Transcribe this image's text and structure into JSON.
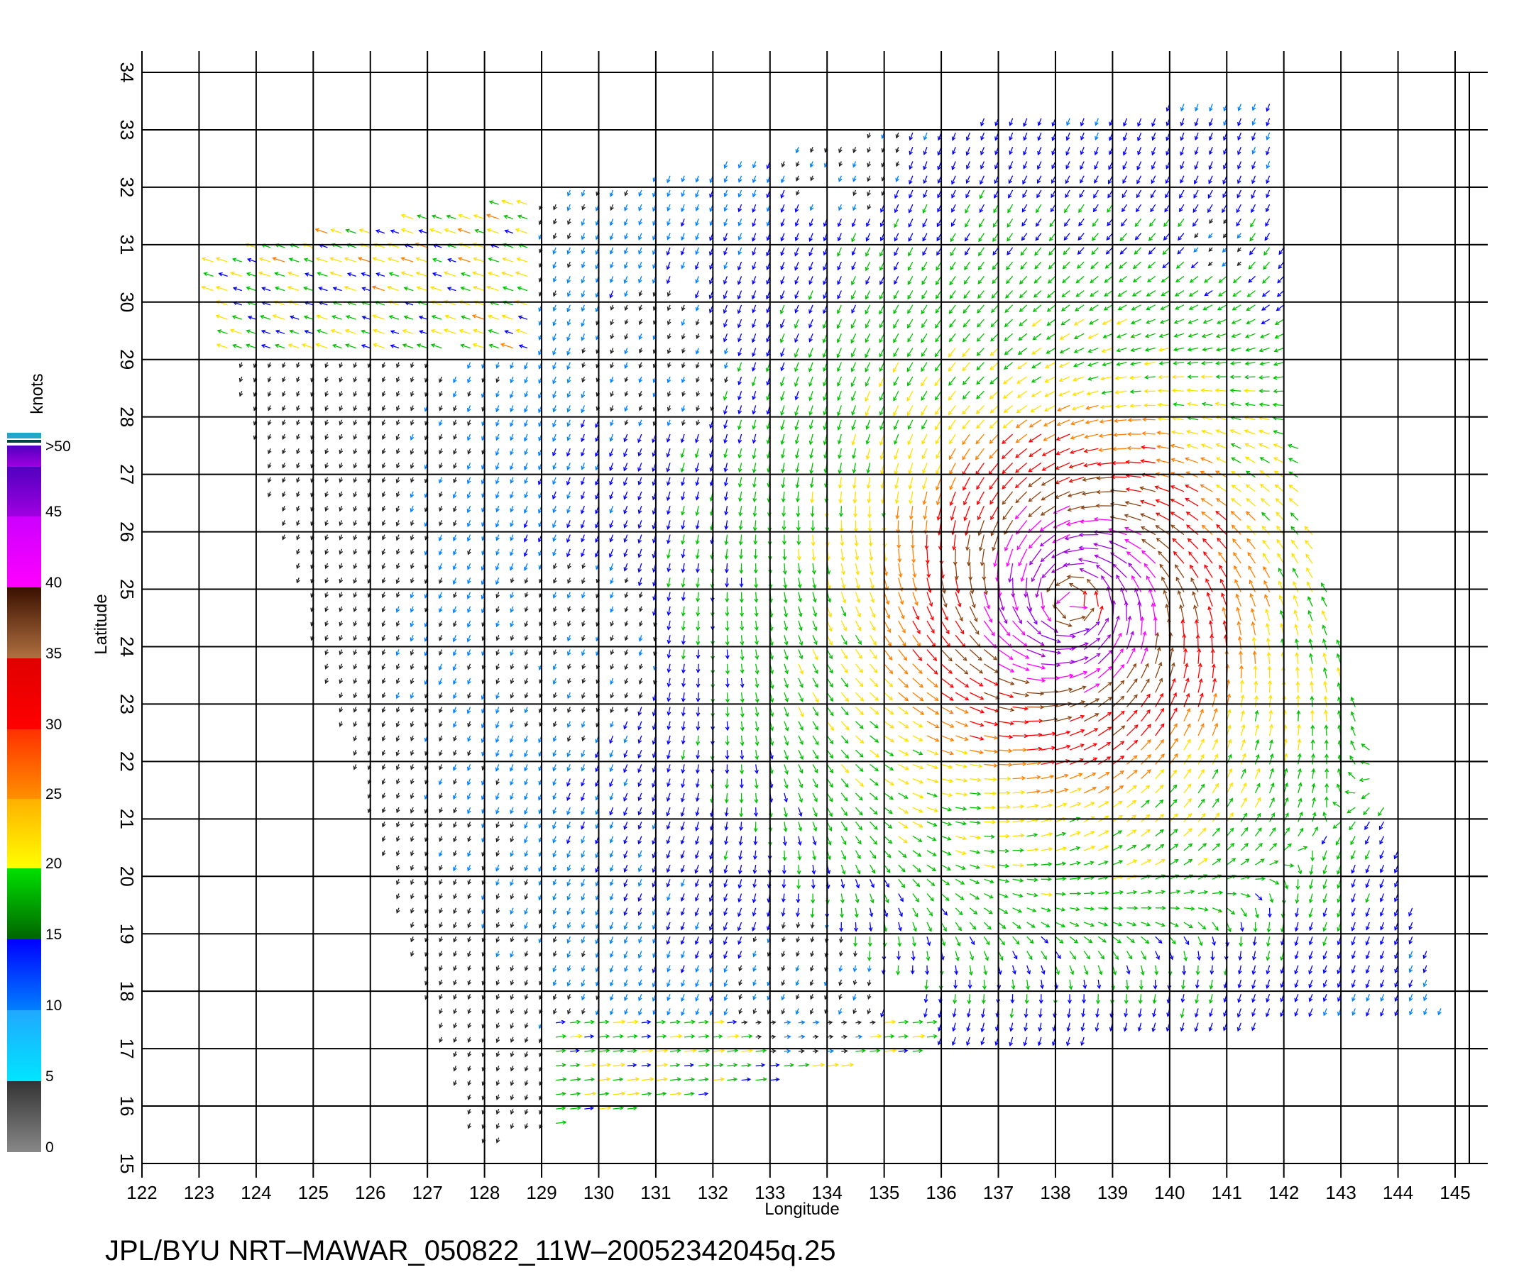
{
  "chart_data": {
    "type": "vector-field",
    "xlabel": "Longitude",
    "ylabel": "Latitude",
    "xlim": [
      122,
      145
    ],
    "ylim": [
      15,
      34
    ],
    "x_ticks": [
      "122",
      "123",
      "124",
      "125",
      "126",
      "127",
      "128",
      "129",
      "130",
      "131",
      "132",
      "133",
      "134",
      "135",
      "136",
      "137",
      "138",
      "139",
      "140",
      "141",
      "142",
      "143",
      "144",
      "145"
    ],
    "y_ticks": [
      "15",
      "16",
      "17",
      "18",
      "19",
      "20",
      "21",
      "22",
      "23",
      "24",
      "25",
      "26",
      "27",
      "28",
      "29",
      "30",
      "31",
      "32",
      "33",
      "34"
    ],
    "grid": true,
    "cyclone_center": {
      "lon": 138.3,
      "lat": 24.8
    },
    "swath_corners": [
      [
        123,
        30.8
      ],
      [
        130.3,
        32.1
      ],
      [
        132.5,
        32.5
      ],
      [
        135.3,
        33.1
      ],
      [
        141.8,
        33.6
      ],
      [
        142.3,
        27.0
      ],
      [
        143.0,
        24.0
      ],
      [
        144.8,
        17.7
      ],
      [
        136.0,
        17.0
      ],
      [
        129.5,
        15.7
      ],
      [
        127.8,
        15.3
      ],
      [
        124.9,
        24.5
      ],
      [
        123,
        30.8
      ]
    ],
    "colorbar": {
      "unit": "knots",
      "labels": [
        "0",
        "5",
        "10",
        "15",
        "20",
        "25",
        "30",
        "35",
        "40",
        "45",
        ">50"
      ],
      "colors": [
        "#888888",
        "#00e5ff",
        "#0080ff",
        "#0000ff",
        "#00c000",
        "#ffe000",
        "#ff8000",
        "#ff0000",
        "#8b4513",
        "#ff00ff",
        "#8000ff"
      ]
    }
  },
  "footer": {
    "title": "JPL/BYU  NRT–MAWAR_050822_11W–20052342045q.25"
  }
}
